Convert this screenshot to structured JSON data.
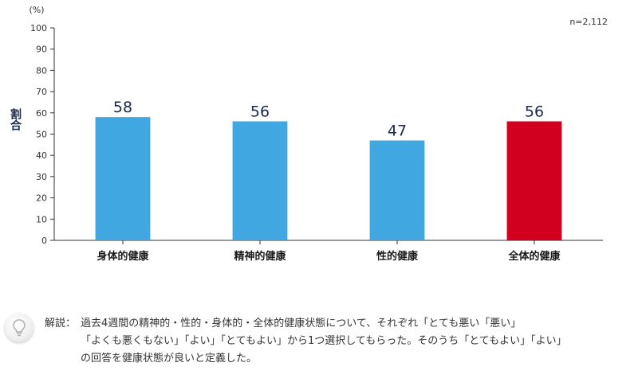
{
  "chart_data": {
    "type": "bar",
    "categories": [
      "身体的健康",
      "精神的健康",
      "性的健康",
      "全体的健康"
    ],
    "values": [
      58,
      56,
      47,
      56
    ],
    "bar_colors": [
      "#41a7e1",
      "#41a7e1",
      "#41a7e1",
      "#d2001e"
    ],
    "ylabel": "割合",
    "unit": "(%)",
    "ylim": [
      0,
      100
    ],
    "yticks": [
      0,
      10,
      20,
      30,
      40,
      50,
      60,
      70,
      80,
      90,
      100
    ],
    "sample_size": "n=2,112",
    "grid": false
  },
  "note": {
    "prefix": "解説：",
    "lines": [
      "過去4週間の精神的・性的・身体的・全体的健康状態について、それぞれ「とても悪い「悪い」",
      "「よくも悪くもない」「よい」「とてもよい」から1つ選択してもらった。そのうち「とてもよい」「よい」",
      "の回答を健康状態が良いと定義した。"
    ]
  },
  "icons": {
    "note_icon": "lightbulb-icon"
  },
  "colors": {
    "axis": "#333333",
    "value_label": "#1a2a4a"
  }
}
